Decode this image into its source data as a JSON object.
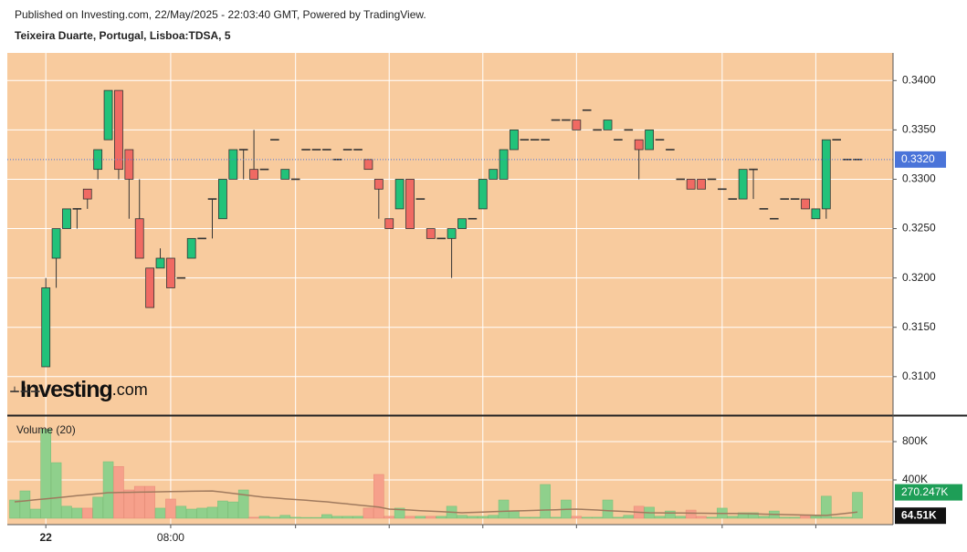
{
  "header": {
    "published": "Published on Investing.com, 22/May/2025 - 22:03:40 GMT, Powered by TradingView.",
    "watermark": "Investing",
    "watermark_suffix": ".com"
  },
  "chart_data": {
    "type": "candlestick",
    "title": "Teixeira Duarte, Portugal, Lisboa:TDSA, 5",
    "categories": [
      null,
      null,
      null,
      "22",
      null,
      null,
      null,
      null,
      null,
      null,
      null,
      null,
      null,
      null,
      null,
      "08:00",
      null,
      null,
      null,
      null,
      null,
      null,
      null,
      null,
      null,
      null,
      null,
      null,
      null,
      null,
      null,
      null,
      null,
      null,
      null,
      null,
      null,
      null,
      null,
      null,
      null,
      null,
      null,
      null,
      null,
      null,
      null,
      null,
      null,
      null,
      null,
      null,
      null,
      null,
      null,
      null,
      null,
      null,
      null,
      null,
      null,
      null,
      null,
      null,
      null,
      null,
      null,
      null,
      null,
      null,
      null,
      null,
      null,
      null,
      null,
      null,
      null,
      null,
      null,
      null,
      null,
      null
    ],
    "xgrid": [
      3,
      15,
      27,
      36,
      45,
      54,
      68,
      77
    ],
    "open": [
      0.3085,
      0.3085,
      0.3085,
      0.311,
      0.322,
      0.325,
      0.327,
      0.329,
      0.331,
      0.334,
      0.339,
      0.333,
      0.326,
      0.321,
      0.321,
      0.322,
      0.32,
      0.322,
      0.324,
      0.328,
      0.326,
      0.33,
      0.333,
      0.331,
      0.331,
      0.334,
      0.33,
      0.33,
      0.333,
      0.333,
      0.333,
      0.332,
      0.333,
      0.333,
      0.332,
      0.33,
      0.326,
      0.327,
      0.33,
      0.328,
      0.325,
      0.324,
      0.324,
      0.325,
      0.326,
      0.327,
      0.33,
      0.33,
      0.333,
      0.334,
      0.334,
      0.334,
      0.336,
      0.336,
      0.336,
      0.337,
      0.335,
      0.335,
      0.334,
      0.335,
      0.334,
      0.333,
      0.334,
      0.333,
      0.33,
      0.33,
      0.33,
      0.33,
      0.329,
      0.328,
      0.328,
      0.331,
      0.327,
      0.326,
      0.328,
      0.328,
      0.328,
      0.326,
      0.327,
      0.334,
      0.332,
      0.332
    ],
    "high": [
      0.309,
      0.309,
      0.309,
      0.32,
      0.325,
      0.327,
      0.327,
      0.329,
      0.333,
      0.339,
      0.339,
      0.333,
      0.33,
      0.321,
      0.323,
      0.322,
      0.32,
      0.324,
      0.324,
      0.328,
      0.33,
      0.333,
      0.333,
      0.335,
      0.331,
      0.334,
      0.331,
      0.33,
      0.333,
      0.333,
      0.333,
      0.332,
      0.333,
      0.333,
      0.332,
      0.33,
      0.326,
      0.33,
      0.33,
      0.328,
      0.325,
      0.324,
      0.325,
      0.326,
      0.326,
      0.33,
      0.331,
      0.333,
      0.335,
      0.334,
      0.334,
      0.334,
      0.336,
      0.336,
      0.336,
      0.337,
      0.335,
      0.336,
      0.334,
      0.335,
      0.334,
      0.335,
      0.334,
      0.333,
      0.33,
      0.33,
      0.33,
      0.33,
      0.329,
      0.328,
      0.331,
      0.331,
      0.327,
      0.326,
      0.328,
      0.328,
      0.328,
      0.327,
      0.334,
      0.334,
      0.332,
      0.332
    ],
    "low": [
      0.3085,
      0.3085,
      0.3085,
      0.311,
      0.319,
      0.325,
      0.325,
      0.327,
      0.33,
      0.334,
      0.33,
      0.326,
      0.322,
      0.317,
      0.321,
      0.319,
      0.32,
      0.322,
      0.324,
      0.324,
      0.326,
      0.33,
      0.33,
      0.33,
      0.331,
      0.334,
      0.33,
      0.33,
      0.333,
      0.333,
      0.333,
      0.332,
      0.333,
      0.333,
      0.331,
      0.326,
      0.325,
      0.327,
      0.325,
      0.328,
      0.324,
      0.324,
      0.32,
      0.325,
      0.326,
      0.327,
      0.33,
      0.33,
      0.333,
      0.334,
      0.334,
      0.334,
      0.336,
      0.336,
      0.335,
      0.337,
      0.335,
      0.335,
      0.334,
      0.335,
      0.33,
      0.333,
      0.334,
      0.333,
      0.33,
      0.329,
      0.329,
      0.33,
      0.329,
      0.328,
      0.328,
      0.328,
      0.327,
      0.326,
      0.328,
      0.328,
      0.327,
      0.326,
      0.326,
      0.334,
      0.332,
      0.332
    ],
    "close": [
      0.3085,
      0.3085,
      0.3085,
      0.319,
      0.325,
      0.327,
      0.327,
      0.328,
      0.333,
      0.339,
      0.331,
      0.33,
      0.322,
      0.317,
      0.322,
      0.319,
      0.32,
      0.324,
      0.324,
      0.328,
      0.33,
      0.333,
      0.333,
      0.33,
      0.331,
      0.334,
      0.331,
      0.33,
      0.333,
      0.333,
      0.333,
      0.332,
      0.333,
      0.333,
      0.331,
      0.329,
      0.325,
      0.33,
      0.325,
      0.328,
      0.324,
      0.324,
      0.325,
      0.326,
      0.326,
      0.33,
      0.331,
      0.333,
      0.335,
      0.334,
      0.334,
      0.334,
      0.336,
      0.336,
      0.335,
      0.337,
      0.335,
      0.336,
      0.334,
      0.335,
      0.333,
      0.335,
      0.334,
      0.333,
      0.33,
      0.329,
      0.329,
      0.33,
      0.329,
      0.328,
      0.331,
      0.331,
      0.327,
      0.326,
      0.328,
      0.328,
      0.327,
      0.327,
      0.334,
      0.334,
      0.332,
      0.332
    ],
    "up_color": "#22c27a",
    "down_color": "#f06a63",
    "background": "#f8cb9e",
    "ylim": [
      0.3061,
      0.3428
    ],
    "yticks": [
      {
        "value": 0.31,
        "label": "0.3100"
      },
      {
        "value": 0.315,
        "label": "0.3150"
      },
      {
        "value": 0.32,
        "label": "0.3200"
      },
      {
        "value": 0.325,
        "label": "0.3250"
      },
      {
        "value": 0.33,
        "label": "0.3300"
      },
      {
        "value": 0.335,
        "label": "0.3350"
      },
      {
        "value": 0.34,
        "label": "0.3400"
      }
    ],
    "price_line": {
      "value": 0.332,
      "label": "0.3320",
      "color": "#4a74d9"
    },
    "volume_pane": {
      "title": "Volume (20)",
      "ylim": [
        -67000,
        1067000
      ],
      "yticks": [
        {
          "value": 400000,
          "label": "400K"
        },
        {
          "value": 800000,
          "label": "800K"
        }
      ],
      "up_color": "#8fd08c",
      "down_color": "#f6a08b",
      "values": [
        190000,
        285000,
        95000,
        930000,
        580000,
        125000,
        105000,
        105000,
        220000,
        590000,
        540000,
        295000,
        333000,
        333000,
        105000,
        200000,
        125000,
        95000,
        105000,
        115000,
        180000,
        170000,
        295000,
        10000,
        20000,
        10000,
        30000,
        10000,
        8000,
        8000,
        38000,
        20000,
        20000,
        20000,
        105000,
        457000,
        20000,
        105000,
        20000,
        20000,
        20000,
        20000,
        125000,
        30000,
        20000,
        20000,
        30000,
        190000,
        75000,
        10000,
        10000,
        352000,
        10000,
        190000,
        20000,
        10000,
        10000,
        190000,
        10000,
        30000,
        125000,
        115000,
        20000,
        75000,
        20000,
        85000,
        20000,
        10000,
        105000,
        20000,
        57000,
        57000,
        20000,
        75000,
        10000,
        10000,
        28000,
        20000,
        230000,
        10000,
        10000,
        270247
      ],
      "last_label": "270.247K",
      "last_color": "#1e9e57",
      "ma": {
        "color": "#a07a5e",
        "label_color": "#111111",
        "last_label": "64.51K",
        "values": [
          171000,
          181000,
          192000,
          203000,
          213000,
          224000,
          235000,
          245000,
          256000,
          267000,
          268000,
          270000,
          272000,
          274000,
          276000,
          278000,
          280000,
          282000,
          284000,
          285000,
          272000,
          259000,
          246000,
          232000,
          219000,
          211000,
          203000,
          195000,
          187000,
          179000,
          171000,
          160000,
          149000,
          138000,
          127000,
          116000,
          95000,
          90000,
          85000,
          79000,
          74000,
          68000,
          63000,
          57000,
          61000,
          64000,
          68000,
          72000,
          76000,
          79000,
          82000,
          85000,
          88000,
          92000,
          95000,
          90000,
          85000,
          79000,
          74000,
          68000,
          62000,
          57000,
          56000,
          55000,
          54000,
          53000,
          52000,
          51000,
          50000,
          49000,
          48000,
          46000,
          43000,
          41000,
          38000,
          36000,
          33000,
          31000,
          29000,
          40000,
          52000,
          64510
        ]
      }
    }
  }
}
